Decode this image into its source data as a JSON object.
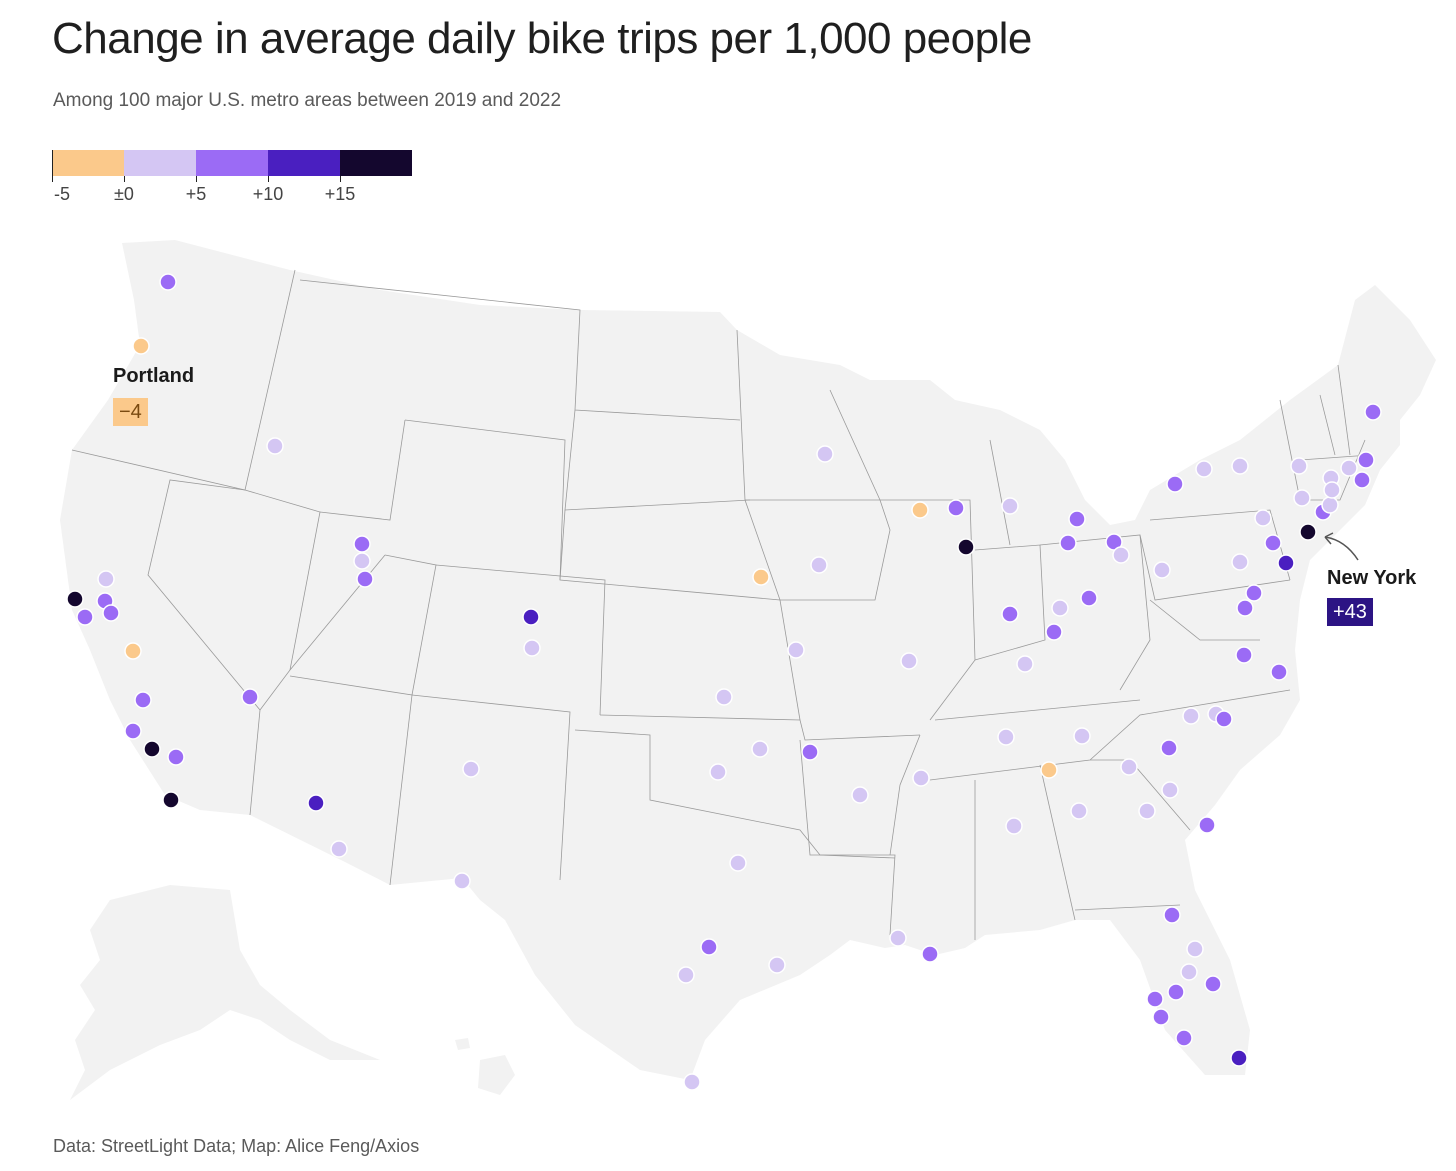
{
  "title": "Change in average daily bike trips per 1,000 people",
  "subtitle": "Among 100 major U.S. metro areas between 2019 and 2022",
  "source": "Data: StreetLight Data; Map: Alice Feng/Axios",
  "legend": {
    "colors": [
      "#fbc98b",
      "#d4c6f3",
      "#9b6bf5",
      "#4a1fc0",
      "#14072e"
    ],
    "labels": [
      "-5",
      "±0",
      "+5",
      "+10",
      "+15"
    ]
  },
  "callouts": {
    "portland": {
      "name": "Portland",
      "value": "−4",
      "bg": "#fbc98b",
      "fg": "#7a4a10"
    },
    "new_york": {
      "name": "New York",
      "value": "+43",
      "bg": "#2c1484",
      "fg": "#ffffff"
    }
  },
  "colors": {
    "land": "#f2f2f2",
    "border": "#8a8a8a",
    "bucket": {
      "neg": "#fbc98b",
      "light": "#d4c6f3",
      "mid": "#9b6bf5",
      "dark": "#4a1fc0",
      "darkest": "#14072e"
    }
  }
}
